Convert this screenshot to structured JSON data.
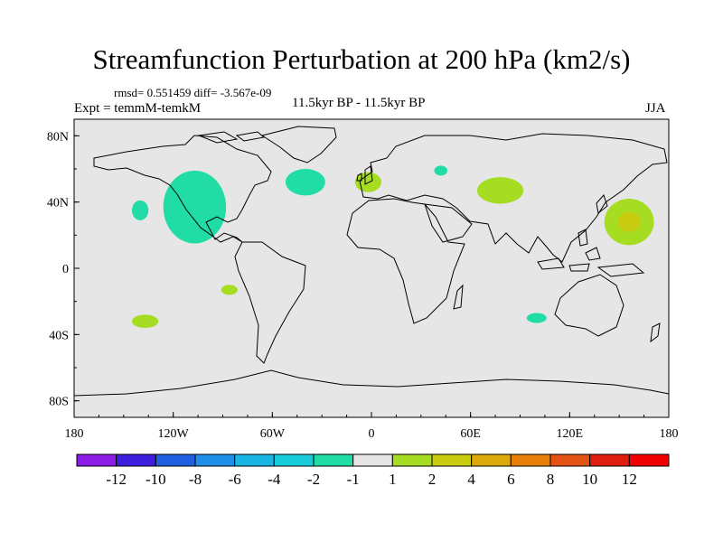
{
  "header": {
    "title": "Streamfunction Perturbation at 200 hPa (km2/s)",
    "stats": "rmsd= 0.551459 diff= -3.567e-09",
    "experiment": "Expt = temmM-temkM",
    "period": "11.5kyr BP - 11.5kyr BP",
    "season": "JJA"
  },
  "chart_data": {
    "type": "contour-map",
    "projection": "cylindrical-equidistant",
    "lon_range": [
      -180,
      180
    ],
    "lat_range": [
      -90,
      90
    ],
    "x_ticks": [
      {
        "value": -180,
        "label": "180"
      },
      {
        "value": -120,
        "label": "120W"
      },
      {
        "value": -60,
        "label": "60W"
      },
      {
        "value": 0,
        "label": "0"
      },
      {
        "value": 60,
        "label": "60E"
      },
      {
        "value": 120,
        "label": "120E"
      },
      {
        "value": 180,
        "label": "180"
      }
    ],
    "y_ticks": [
      {
        "value": 80,
        "label": "80N"
      },
      {
        "value": 40,
        "label": "40N"
      },
      {
        "value": 0,
        "label": "0"
      },
      {
        "value": -40,
        "label": "40S"
      },
      {
        "value": -80,
        "label": "80S"
      }
    ],
    "colorbar": {
      "labels": [
        "-12",
        "-10",
        "-8",
        "-6",
        "-4",
        "-2",
        "-1",
        "1",
        "2",
        "4",
        "6",
        "8",
        "10",
        "12"
      ],
      "colors": [
        "#8a1ce6",
        "#3c1edc",
        "#1f5fe0",
        "#1e8ee6",
        "#18b4e4",
        "#17ccd8",
        "#22dca6",
        "#e6e6e6",
        "#a6dc22",
        "#c8cc10",
        "#dcaa0a",
        "#e6800a",
        "#e25212",
        "#e01e10",
        "#f00000"
      ]
    },
    "anomalies": [
      {
        "region": "North America",
        "lon": -107,
        "lat": 37,
        "rlon": 19,
        "rlat": 22,
        "level": "-2 to -1",
        "color": "#22dca6"
      },
      {
        "region": "North Atlantic",
        "lon": -40,
        "lat": 52,
        "rlon": 12,
        "rlat": 8,
        "level": "-2 to -1",
        "color": "#22dca6"
      },
      {
        "region": "Northeast Pacific",
        "lon": -140,
        "lat": 35,
        "rlon": 5,
        "rlat": 6,
        "level": "-2 to -1",
        "color": "#22dca6"
      },
      {
        "region": "Eastern Europe",
        "lon": 42,
        "lat": 59,
        "rlon": 4,
        "rlat": 3,
        "level": "-2 to -1",
        "color": "#22dca6"
      },
      {
        "region": "Southeast Indian Ocean",
        "lon": 100,
        "lat": -30,
        "rlon": 6,
        "rlat": 3,
        "level": "-2 to -1",
        "color": "#22dca6"
      },
      {
        "region": "Western Europe",
        "lon": -2,
        "lat": 52,
        "rlon": 8,
        "rlat": 6,
        "level": "1 to 2",
        "color": "#a6dc22"
      },
      {
        "region": "Central Asia",
        "lon": 78,
        "lat": 47,
        "rlon": 14,
        "rlat": 8,
        "level": "1 to 2",
        "color": "#a6dc22"
      },
      {
        "region": "Northwest Pacific",
        "lon": 156,
        "lat": 28,
        "rlon": 15,
        "rlat": 14,
        "level": "1 to 2",
        "color": "#a6dc22"
      },
      {
        "region": "Northwest Pacific core",
        "lon": 156,
        "lat": 28,
        "rlon": 7,
        "rlat": 6,
        "level": "2 to 4",
        "color": "#c8cc10"
      },
      {
        "region": "Eastern Tropical Pacific",
        "lon": -86,
        "lat": -13,
        "rlon": 5,
        "rlat": 3,
        "level": "1 to 2",
        "color": "#a6dc22"
      },
      {
        "region": "South Pacific",
        "lon": -137,
        "lat": -32,
        "rlon": 8,
        "rlat": 4,
        "level": "1 to 2",
        "color": "#a6dc22"
      }
    ]
  }
}
